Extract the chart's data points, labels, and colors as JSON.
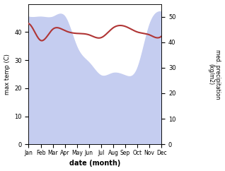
{
  "months": [
    "Jan",
    "Feb",
    "Mar",
    "Apr",
    "May",
    "Jun",
    "Jul",
    "Aug",
    "Sep",
    "Oct",
    "Nov",
    "Dec"
  ],
  "month_indices": [
    0,
    1,
    2,
    3,
    4,
    5,
    6,
    7,
    8,
    9,
    10,
    11
  ],
  "temperature": [
    43.0,
    37.0,
    41.0,
    40.5,
    39.5,
    39.0,
    38.0,
    41.5,
    42.0,
    40.0,
    39.0,
    38.5
  ],
  "precipitation": [
    50,
    50,
    50,
    50,
    38,
    32,
    27,
    28,
    27,
    30,
    47,
    52
  ],
  "temp_ylim": [
    0,
    50
  ],
  "precip_ylim": [
    0,
    55
  ],
  "temp_color": "#b03535",
  "precip_fill_color": "#c5cdf0",
  "xlabel": "date (month)",
  "ylabel_left": "max temp (C)",
  "ylabel_right": "med. precipitation\n(kg/m2)",
  "left_yticks": [
    0,
    10,
    20,
    30,
    40
  ],
  "right_yticks": [
    0,
    10,
    20,
    30,
    40,
    50
  ],
  "background_color": "#ffffff",
  "figsize": [
    3.18,
    2.42
  ],
  "dpi": 100
}
